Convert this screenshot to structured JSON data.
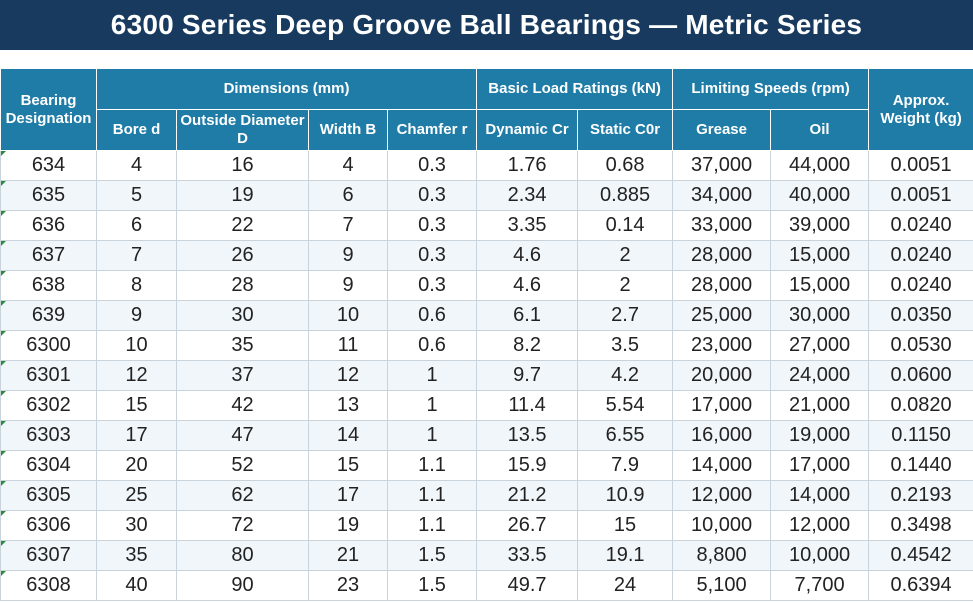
{
  "title": "6300 Series Deep Groove Ball Bearings — Metric Series",
  "headers": {
    "designation": "Bearing Designation",
    "dimensions": "Dimensions (mm)",
    "load_ratings": "Basic Load Ratings (kN)",
    "speeds": "Limiting Speeds (rpm)",
    "weight": "Approx. Weight (kg)",
    "bore": "Bore d",
    "outside": "Outside Diameter D",
    "width": "Width B",
    "chamfer": "Chamfer r",
    "dynamic": "Dynamic Cr",
    "static": "Static C0r",
    "grease": "Grease",
    "oil": "Oil"
  },
  "rows": [
    [
      "634",
      "4",
      "16",
      "4",
      "0.3",
      "1.76",
      "0.68",
      "37,000",
      "44,000",
      "0.0051"
    ],
    [
      "635",
      "5",
      "19",
      "6",
      "0.3",
      "2.34",
      "0.885",
      "34,000",
      "40,000",
      "0.0051"
    ],
    [
      "636",
      "6",
      "22",
      "7",
      "0.3",
      "3.35",
      "0.14",
      "33,000",
      "39,000",
      "0.0240"
    ],
    [
      "637",
      "7",
      "26",
      "9",
      "0.3",
      "4.6",
      "2",
      "28,000",
      "15,000",
      "0.0240"
    ],
    [
      "638",
      "8",
      "28",
      "9",
      "0.3",
      "4.6",
      "2",
      "28,000",
      "15,000",
      "0.0240"
    ],
    [
      "639",
      "9",
      "30",
      "10",
      "0.6",
      "6.1",
      "2.7",
      "25,000",
      "30,000",
      "0.0350"
    ],
    [
      "6300",
      "10",
      "35",
      "11",
      "0.6",
      "8.2",
      "3.5",
      "23,000",
      "27,000",
      "0.0530"
    ],
    [
      "6301",
      "12",
      "37",
      "12",
      "1",
      "9.7",
      "4.2",
      "20,000",
      "24,000",
      "0.0600"
    ],
    [
      "6302",
      "15",
      "42",
      "13",
      "1",
      "11.4",
      "5.54",
      "17,000",
      "21,000",
      "0.0820"
    ],
    [
      "6303",
      "17",
      "47",
      "14",
      "1",
      "13.5",
      "6.55",
      "16,000",
      "19,000",
      "0.1150"
    ],
    [
      "6304",
      "20",
      "52",
      "15",
      "1.1",
      "15.9",
      "7.9",
      "14,000",
      "17,000",
      "0.1440"
    ],
    [
      "6305",
      "25",
      "62",
      "17",
      "1.1",
      "21.2",
      "10.9",
      "12,000",
      "14,000",
      "0.2193"
    ],
    [
      "6306",
      "30",
      "72",
      "19",
      "1.1",
      "26.7",
      "15",
      "10,000",
      "12,000",
      "0.3498"
    ],
    [
      "6307",
      "35",
      "80",
      "21",
      "1.5",
      "33.5",
      "19.1",
      "8,800",
      "10,000",
      "0.4542"
    ],
    [
      "6308",
      "40",
      "90",
      "23",
      "1.5",
      "49.7",
      "24",
      "5,100",
      "7,700",
      "0.6394"
    ]
  ]
}
